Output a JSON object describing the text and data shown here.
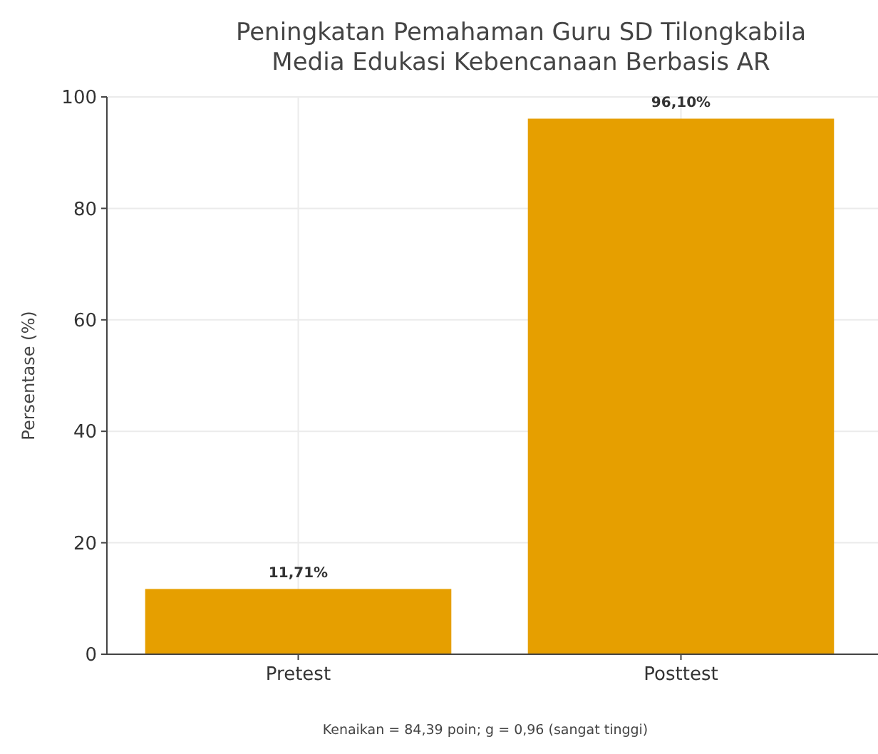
{
  "chart_data": {
    "type": "bar",
    "title": "Peningkatan Pemahaman Guru SD Tilongkabila\nMedia Edukasi Kebencanaan Berbasis AR",
    "ylabel": "Persentase (%)",
    "categories": [
      "Pretest",
      "Posttest"
    ],
    "values": [
      11.71,
      96.1
    ],
    "value_labels": [
      "11,71%",
      "96,10%"
    ],
    "color": "#e69f00",
    "ylim": [
      0,
      100
    ],
    "yticks": [
      0,
      20,
      40,
      60,
      80,
      100
    ],
    "grid": true,
    "annotations": [
      "Kenaikan = 84,39 poin; g = 0,96 (sangat tinggi)"
    ]
  }
}
